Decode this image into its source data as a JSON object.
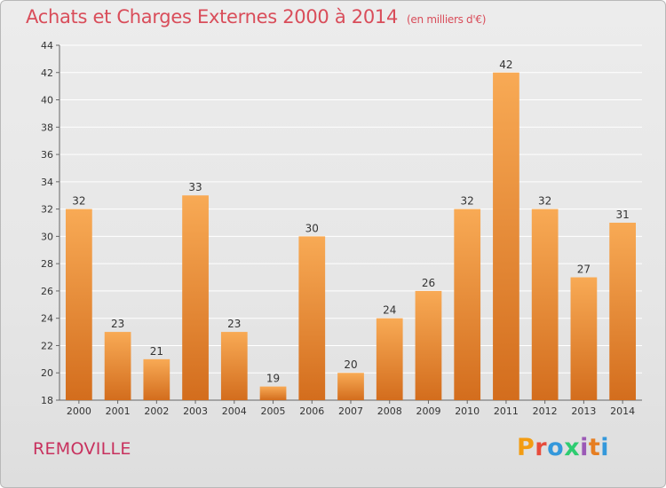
{
  "header": {
    "title": "Achats et Charges Externes 2000 à 2014",
    "unit": "(en milliers d'€)"
  },
  "footer": {
    "commune": "REMOVILLE",
    "logo_text": "Proxiti",
    "logo_colors": [
      "#f39c12",
      "#e74c3c",
      "#3498db",
      "#2ecc71",
      "#9b59b6",
      "#e67e22",
      "#3498db"
    ]
  },
  "colors": {
    "title": "#d94d5a",
    "bar_light": "#f7a64f",
    "bar_dark": "#d36d1d",
    "grid": "#ffffff",
    "axis": "#666666"
  },
  "chart_data": {
    "type": "bar",
    "title": "Achats et Charges Externes 2000 à 2014",
    "subtitle": "(en milliers d'€)",
    "xlabel": "",
    "ylabel": "",
    "categories": [
      "2000",
      "2001",
      "2002",
      "2003",
      "2004",
      "2005",
      "2006",
      "2007",
      "2008",
      "2009",
      "2010",
      "2011",
      "2012",
      "2013",
      "2014"
    ],
    "values": [
      32,
      23,
      21,
      33,
      23,
      19,
      30,
      20,
      24,
      26,
      32,
      42,
      32,
      27,
      31
    ],
    "ylim": [
      18,
      44
    ],
    "yticks": [
      18,
      20,
      22,
      24,
      26,
      28,
      30,
      32,
      34,
      36,
      38,
      40,
      42,
      44
    ],
    "grid": true,
    "legend": "none"
  }
}
